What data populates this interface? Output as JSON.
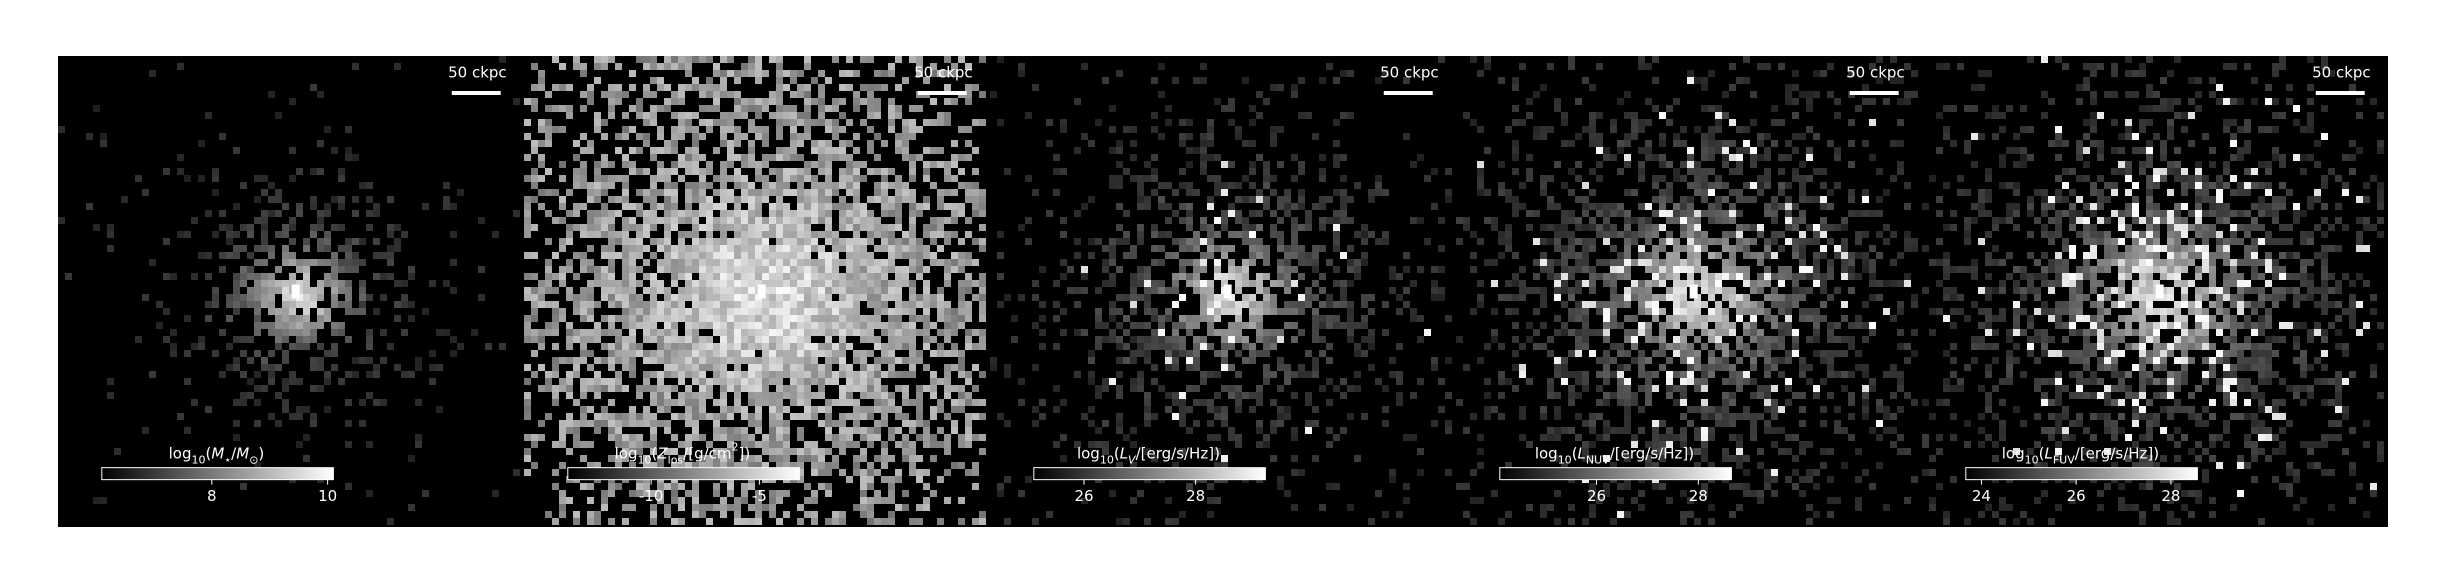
{
  "panels": [
    {
      "scalebar": "50 ckpc",
      "colorbar": {
        "label": [
          {
            "text": "log"
          },
          {
            "text": "10",
            "sub": true
          },
          {
            "text": "("
          },
          {
            "text": "M"
          },
          {
            "text": "⋆",
            "sub": true
          },
          {
            "text": "/"
          },
          {
            "text": "M"
          },
          {
            "text": "⊙",
            "sub": true
          },
          {
            "text": ")"
          }
        ],
        "lim": [
          6.1,
          10.1
        ],
        "ticks": [
          8,
          10
        ]
      }
    },
    {
      "scalebar": "50 ckpc",
      "colorbar": {
        "label": [
          {
            "text": "log"
          },
          {
            "text": "10",
            "sub": true
          },
          {
            "text": "("
          },
          {
            "text": "Z"
          },
          {
            "text": "los",
            "sub": true
          },
          {
            "text": "/[g/cm"
          },
          {
            "text": "2",
            "sup": true
          },
          {
            "text": "])"
          }
        ],
        "lim": [
          -13.85,
          -3.15
        ],
        "ticks": [
          -10,
          -5
        ]
      }
    },
    {
      "scalebar": "50 ckpc",
      "colorbar": {
        "label": [
          {
            "text": "log"
          },
          {
            "text": "10",
            "sub": true
          },
          {
            "text": "("
          },
          {
            "text": "L"
          },
          {
            "text": "V",
            "sub": true
          },
          {
            "text": "/[erg/s/Hz])"
          }
        ],
        "lim": [
          25.1,
          29.25
        ],
        "ticks": [
          26,
          28
        ]
      }
    },
    {
      "scalebar": "50 ckpc",
      "colorbar": {
        "label": [
          {
            "text": "log"
          },
          {
            "text": "10",
            "sub": true
          },
          {
            "text": "("
          },
          {
            "text": "L"
          },
          {
            "text": "NUV",
            "sub": true
          },
          {
            "text": "/[erg/s/Hz])"
          }
        ],
        "lim": [
          24.1,
          28.65
        ],
        "ticks": [
          26,
          28
        ]
      }
    },
    {
      "scalebar": "50 ckpc",
      "colorbar": {
        "label": [
          {
            "text": "log"
          },
          {
            "text": "10",
            "sub": true
          },
          {
            "text": "("
          },
          {
            "text": "L"
          },
          {
            "text": "FUV",
            "sub": true
          },
          {
            "text": "/[erg/s/Hz])"
          }
        ],
        "lim": [
          23.67,
          28.56
        ],
        "ticks": [
          24,
          26,
          28
        ]
      }
    }
  ]
}
